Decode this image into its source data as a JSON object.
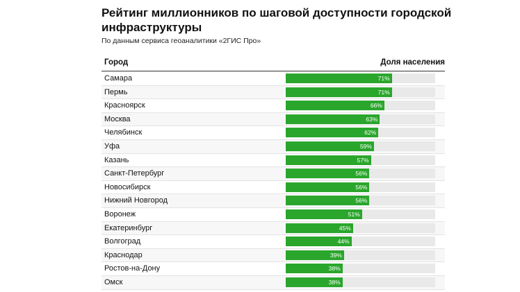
{
  "title": "Рейтинг миллионников по шаговой доступности городской инфраструктуры",
  "subtitle": "По данным сервиса геоаналитики «2ГИС Про»",
  "columns": {
    "city": "Город",
    "share": "Доля населения"
  },
  "chart_data": {
    "type": "bar",
    "orientation": "horizontal",
    "title": "Рейтинг миллионников по шаговой доступности городской инфраструктуры",
    "subtitle": "По данным сервиса геоаналитики «2ГИС Про»",
    "xlabel": "Доля населения",
    "ylabel": "Город",
    "xlim": [
      0,
      100
    ],
    "unit": "%",
    "bar_color": "#2aa62c",
    "track_color": "#e9e9e9",
    "categories": [
      "Самара",
      "Пермь",
      "Красноярск",
      "Москва",
      "Челябинск",
      "Уфа",
      "Казань",
      "Санкт-Петербург",
      "Новосибирск",
      "Нижний Новгород",
      "Воронеж",
      "Екатеринбург",
      "Волгоград",
      "Краснодар",
      "Ростов-на-Дону",
      "Омск"
    ],
    "values": [
      71,
      71,
      66,
      63,
      62,
      59,
      57,
      56,
      56,
      56,
      51,
      45,
      44,
      39,
      38,
      38
    ],
    "labels": [
      "71%",
      "71%",
      "66%",
      "63%",
      "62%",
      "59%",
      "57%",
      "56%",
      "56%",
      "56%",
      "51%",
      "45%",
      "44%",
      "39%",
      "38%",
      "38%"
    ]
  }
}
